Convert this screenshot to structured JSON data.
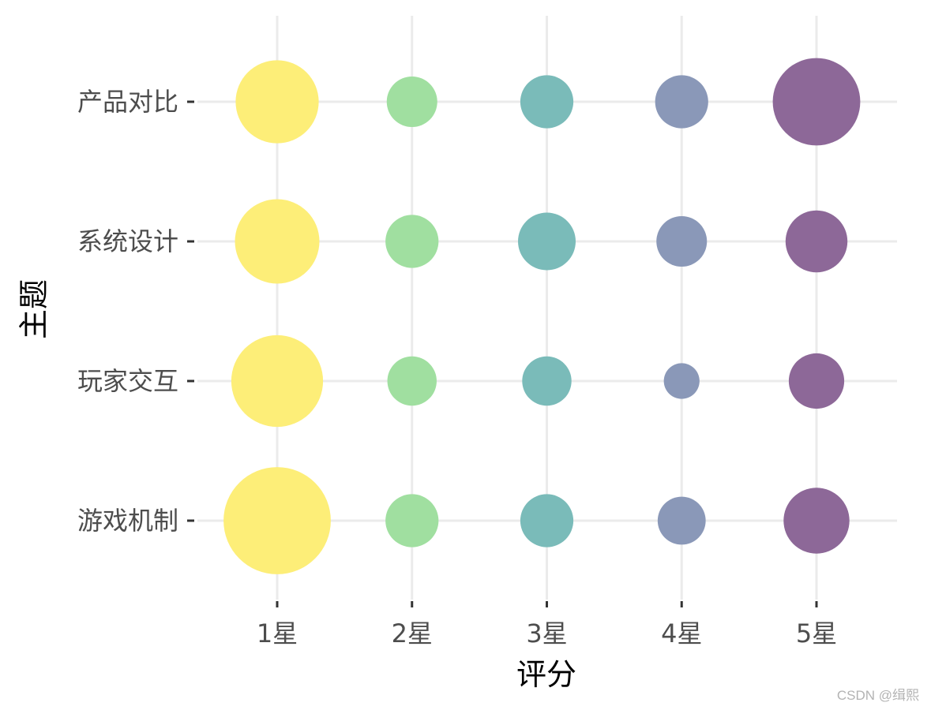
{
  "chart_data": {
    "type": "scatter",
    "style": "bubble",
    "xlabel": "评分",
    "ylabel": "主题",
    "x_categories": [
      "1星",
      "2星",
      "3星",
      "4星",
      "5星"
    ],
    "y_categories": [
      "游戏机制",
      "玩家交互",
      "系统设计",
      "产品对比"
    ],
    "colors": [
      "#FDEE78",
      "#A0DFA0",
      "#7ABBB9",
      "#8A98B8",
      "#8D6898"
    ],
    "grid": true,
    "legend": "none",
    "points": [
      {
        "x": "1星",
        "y": "产品对比",
        "size": 2.7
      },
      {
        "x": "2星",
        "y": "产品对比",
        "size": 1.0
      },
      {
        "x": "3星",
        "y": "产品对比",
        "size": 1.1
      },
      {
        "x": "4星",
        "y": "产品对比",
        "size": 1.1
      },
      {
        "x": "5星",
        "y": "产品对比",
        "size": 3.0
      },
      {
        "x": "1星",
        "y": "系统设计",
        "size": 2.8
      },
      {
        "x": "2星",
        "y": "系统设计",
        "size": 1.1
      },
      {
        "x": "3星",
        "y": "系统设计",
        "size": 1.3
      },
      {
        "x": "4星",
        "y": "系统设计",
        "size": 1.0
      },
      {
        "x": "5星",
        "y": "系统设计",
        "size": 1.5
      },
      {
        "x": "1星",
        "y": "玩家交互",
        "size": 3.3
      },
      {
        "x": "2星",
        "y": "玩家交互",
        "size": 0.95
      },
      {
        "x": "3星",
        "y": "玩家交互",
        "size": 0.95
      },
      {
        "x": "4星",
        "y": "玩家交互",
        "size": 0.5
      },
      {
        "x": "5星",
        "y": "玩家交互",
        "size": 1.2
      },
      {
        "x": "1星",
        "y": "游戏机制",
        "size": 4.5
      },
      {
        "x": "2星",
        "y": "游戏机制",
        "size": 1.1
      },
      {
        "x": "3星",
        "y": "游戏机制",
        "size": 1.1
      },
      {
        "x": "4星",
        "y": "游戏机制",
        "size": 0.9
      },
      {
        "x": "5星",
        "y": "游戏机制",
        "size": 1.7
      }
    ]
  },
  "watermark": "CSDN @缉熙"
}
